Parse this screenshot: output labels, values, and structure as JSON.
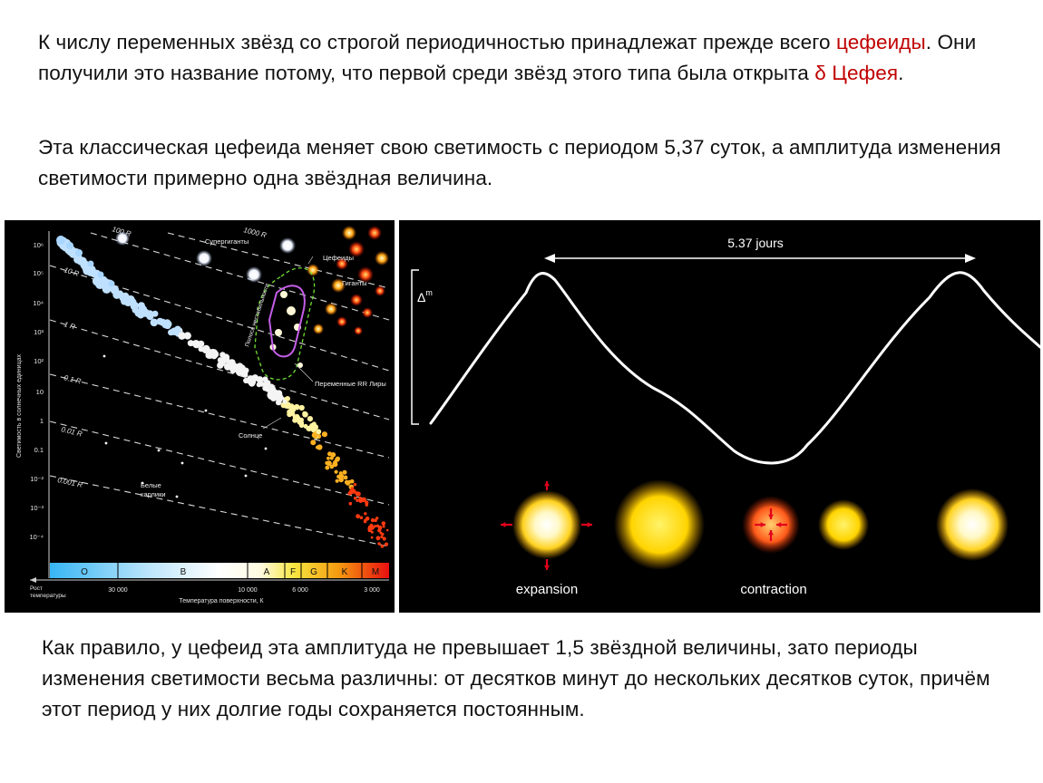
{
  "text": {
    "p1_a": "К числу переменных звёзд со строгой периодичностью принадлежат прежде всего ",
    "p1_hl1": "цефеиды",
    "p1_b": ". Они получили это название потому, что первой среди звёзд этого типа была открыта ",
    "p1_hl2": "δ Цефея",
    "p1_c": ".",
    "p2": "Эта классическая цефеида меняет свою светимость с периодом 5,37 суток, а амплитуда изменения светимости примерно одна звёздная величина.",
    "p3": "Как правило, у цефеид эта амплитуда не превышает 1,5 звёздной величины, зато периоды изменения светимости весьма различны: от десятков минут до нескольких десятков суток, причём этот период у них долгие годы сохраняется постоянным."
  },
  "hr": {
    "y_ticks": [
      "10⁶",
      "10⁵",
      "10⁴",
      "10³",
      "10²",
      "10",
      "1",
      "0.1",
      "10⁻²",
      "10⁻³",
      "10⁻⁴"
    ],
    "y_axis_label": "Светимость в солнечных единицах",
    "radius_lines": [
      "1000 R",
      "100 R",
      "10 R",
      "1 R",
      "0.1 R",
      "0.01 R",
      "0.001 R"
    ],
    "labels": {
      "supergiants": "Супергиганты",
      "cepheids": "Цефеиды",
      "giants": "Гиганты",
      "instability_strip": "Полоса нестабильности",
      "rr_lyrae": "Переменные RR Лиры",
      "sun": "Солнце",
      "white_dwarfs_1": "Белые",
      "white_dwarfs_2": "карлики"
    },
    "spectral_classes": [
      "O",
      "B",
      "A",
      "F",
      "G",
      "K",
      "M"
    ],
    "temp_ticks": [
      "30 000",
      "10 000",
      "6 000",
      "3 000"
    ],
    "temp_growth_1": "Рост",
    "temp_growth_2": "температуры",
    "x_axis_label": "Температура поверхности, К"
  },
  "lc": {
    "period_label": "5.37 jours",
    "amplitude_label": "Δ",
    "amplitude_sup": "m",
    "expansion_label": "expansion",
    "contraction_label": "contraction",
    "accent_color": "#e3001b"
  }
}
